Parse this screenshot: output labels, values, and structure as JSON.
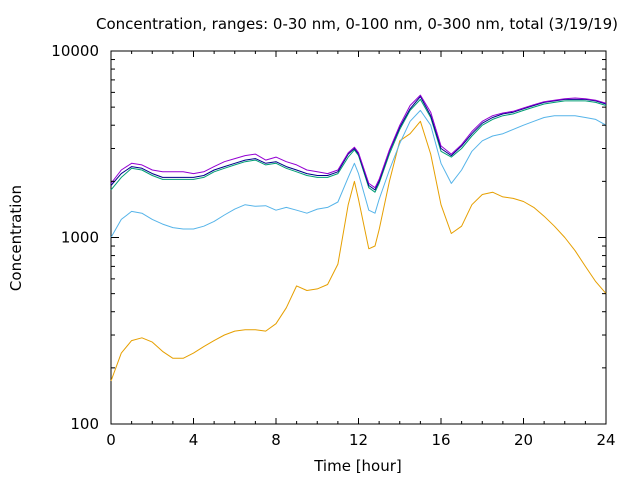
{
  "chart_data": {
    "type": "line",
    "title": "Concentration, ranges: 0-30 nm, 0-100 nm, 0-300 nm, total (3/19/19)",
    "xlabel": "Time [hour]",
    "ylabel": "Concentration",
    "xlim": [
      0,
      24
    ],
    "ylim": [
      100,
      10000
    ],
    "yscale": "log",
    "grid": false,
    "legend": "none",
    "x_ticks": [
      "0",
      "4",
      "8",
      "12",
      "16",
      "20",
      "24"
    ],
    "y_ticks": [
      "100",
      "1000",
      "10000"
    ],
    "series": [
      {
        "color": "#e69f00",
        "x": [
          0,
          0.5,
          1,
          1.5,
          2,
          2.5,
          3,
          3.5,
          4,
          4.5,
          5,
          5.5,
          6,
          6.5,
          7,
          7.5,
          8,
          8.5,
          9,
          9.5,
          10,
          10.5,
          11,
          11.5,
          11.8,
          12,
          12.5,
          12.8,
          13,
          13.5,
          14,
          14.5,
          15,
          15.5,
          16,
          16.5,
          17,
          17.5,
          18,
          18.5,
          19,
          19.5,
          20,
          20.5,
          21,
          21.5,
          22,
          22.5,
          23,
          23.5,
          24
        ],
        "y": [
          170,
          240,
          280,
          290,
          275,
          245,
          225,
          225,
          240,
          260,
          280,
          300,
          315,
          320,
          320,
          315,
          345,
          420,
          550,
          520,
          530,
          560,
          720,
          1500,
          2000,
          1600,
          870,
          900,
          1100,
          2000,
          3300,
          3600,
          4200,
          2800,
          1500,
          1050,
          1150,
          1500,
          1700,
          1750,
          1650,
          1620,
          1560,
          1450,
          1300,
          1150,
          1000,
          850,
          700,
          580,
          500
        ]
      },
      {
        "color": "#56b4e9",
        "x": [
          0,
          0.5,
          1,
          1.5,
          2,
          2.5,
          3,
          3.5,
          4,
          4.5,
          5,
          5.5,
          6,
          6.5,
          7,
          7.5,
          8,
          8.5,
          9,
          9.5,
          10,
          10.5,
          11,
          11.5,
          11.8,
          12,
          12.5,
          12.8,
          13,
          13.5,
          14,
          14.5,
          15,
          15.5,
          16,
          16.5,
          17,
          17.5,
          18,
          18.5,
          19,
          19.5,
          20,
          20.5,
          21,
          21.5,
          22,
          22.5,
          23,
          23.5,
          24
        ],
        "y": [
          1000,
          1250,
          1380,
          1350,
          1250,
          1180,
          1130,
          1110,
          1110,
          1150,
          1220,
          1320,
          1420,
          1500,
          1470,
          1480,
          1400,
          1450,
          1400,
          1350,
          1420,
          1450,
          1550,
          2100,
          2500,
          2200,
          1400,
          1350,
          1600,
          2300,
          3200,
          4200,
          4800,
          4000,
          2500,
          1950,
          2300,
          2900,
          3300,
          3500,
          3600,
          3800,
          4000,
          4200,
          4400,
          4500,
          4500,
          4500,
          4400,
          4300,
          4000
        ]
      },
      {
        "color": "#009e73",
        "x": [
          0,
          0.5,
          1,
          1.5,
          2,
          2.5,
          3,
          3.5,
          4,
          4.5,
          5,
          5.5,
          6,
          6.5,
          7,
          7.5,
          8,
          8.5,
          9,
          9.5,
          10,
          10.5,
          11,
          11.5,
          11.8,
          12,
          12.5,
          12.8,
          13,
          13.5,
          14,
          14.5,
          15,
          15.5,
          16,
          16.5,
          17,
          17.5,
          18,
          18.5,
          19,
          19.5,
          20,
          20.5,
          21,
          21.5,
          22,
          22.5,
          23,
          23.5,
          24
        ],
        "y": [
          1800,
          2100,
          2350,
          2300,
          2150,
          2050,
          2050,
          2050,
          2050,
          2100,
          2250,
          2350,
          2450,
          2550,
          2600,
          2450,
          2500,
          2350,
          2250,
          2150,
          2100,
          2100,
          2200,
          2700,
          2950,
          2750,
          1850,
          1750,
          1950,
          2800,
          3800,
          4800,
          5500,
          4400,
          2900,
          2700,
          3000,
          3500,
          4000,
          4300,
          4500,
          4600,
          4800,
          5000,
          5200,
          5300,
          5400,
          5400,
          5400,
          5300,
          5100
        ]
      },
      {
        "color": "#00008b",
        "x": [
          0,
          0.5,
          1,
          1.5,
          2,
          2.5,
          3,
          3.5,
          4,
          4.5,
          5,
          5.5,
          6,
          6.5,
          7,
          7.5,
          8,
          8.5,
          9,
          9.5,
          10,
          10.5,
          11,
          11.5,
          11.8,
          12,
          12.5,
          12.8,
          13,
          13.5,
          14,
          14.5,
          15,
          15.5,
          16,
          16.5,
          17,
          17.5,
          18,
          18.5,
          19,
          19.5,
          20,
          20.5,
          21,
          21.5,
          22,
          22.5,
          23,
          23.5,
          24
        ],
        "y": [
          1900,
          2200,
          2400,
          2350,
          2200,
          2100,
          2100,
          2100,
          2100,
          2150,
          2300,
          2400,
          2500,
          2600,
          2650,
          2500,
          2550,
          2400,
          2300,
          2200,
          2150,
          2150,
          2250,
          2800,
          3000,
          2800,
          1900,
          1800,
          2000,
          2900,
          3900,
          4900,
          5700,
          4500,
          3000,
          2750,
          3100,
          3600,
          4100,
          4400,
          4600,
          4700,
          4900,
          5100,
          5300,
          5400,
          5500,
          5500,
          5500,
          5400,
          5200
        ]
      },
      {
        "color": "#9400d3",
        "x": [
          0,
          0.5,
          1,
          1.5,
          2,
          2.5,
          3,
          3.5,
          4,
          4.5,
          5,
          5.5,
          6,
          6.5,
          7,
          7.5,
          8,
          8.5,
          9,
          9.5,
          10,
          10.5,
          11,
          11.5,
          11.8,
          12,
          12.5,
          12.8,
          13,
          13.5,
          14,
          14.5,
          15,
          15.5,
          16,
          16.5,
          17,
          17.5,
          18,
          18.5,
          19,
          19.5,
          20,
          20.5,
          21,
          21.5,
          22,
          22.5,
          23,
          23.5,
          24
        ],
        "y": [
          1950,
          2300,
          2500,
          2450,
          2300,
          2250,
          2250,
          2250,
          2200,
          2250,
          2400,
          2550,
          2650,
          2750,
          2800,
          2600,
          2700,
          2550,
          2450,
          2300,
          2250,
          2200,
          2300,
          2850,
          3050,
          2850,
          1950,
          1850,
          2050,
          2950,
          4000,
          5100,
          5800,
          4700,
          3100,
          2800,
          3150,
          3700,
          4200,
          4500,
          4650,
          4750,
          4950,
          5150,
          5350,
          5450,
          5550,
          5600,
          5550,
          5450,
          5250
        ]
      }
    ]
  }
}
